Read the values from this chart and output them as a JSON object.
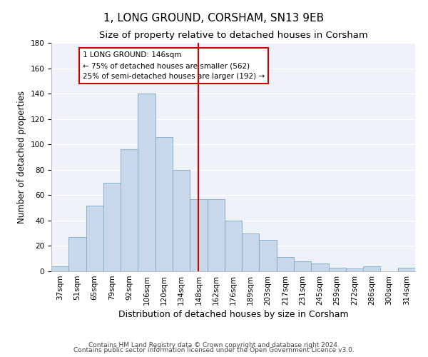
{
  "title": "1, LONG GROUND, CORSHAM, SN13 9EB",
  "subtitle": "Size of property relative to detached houses in Corsham",
  "xlabel": "Distribution of detached houses by size in Corsham",
  "ylabel": "Number of detached properties",
  "categories": [
    "37sqm",
    "51sqm",
    "65sqm",
    "79sqm",
    "92sqm",
    "106sqm",
    "120sqm",
    "134sqm",
    "148sqm",
    "162sqm",
    "176sqm",
    "189sqm",
    "203sqm",
    "217sqm",
    "231sqm",
    "245sqm",
    "259sqm",
    "272sqm",
    "286sqm",
    "300sqm",
    "314sqm"
  ],
  "values": [
    4,
    27,
    52,
    70,
    96,
    140,
    106,
    80,
    57,
    57,
    40,
    30,
    25,
    11,
    8,
    6,
    3,
    2,
    4,
    0,
    3
  ],
  "bar_color": "#c8d8ea",
  "bar_edge_color": "#7aaac8",
  "vline_x_index": 8,
  "vline_color": "#cc0000",
  "annotation_text": "1 LONG GROUND: 146sqm\n← 75% of detached houses are smaller (562)\n25% of semi-detached houses are larger (192) →",
  "annotation_box_color": "#cc0000",
  "ylim": [
    0,
    180
  ],
  "yticks": [
    0,
    20,
    40,
    60,
    80,
    100,
    120,
    140,
    160,
    180
  ],
  "footer_line1": "Contains HM Land Registry data © Crown copyright and database right 2024.",
  "footer_line2": "Contains public sector information licensed under the Open Government Licence v3.0.",
  "title_fontsize": 11,
  "subtitle_fontsize": 9.5,
  "xlabel_fontsize": 9,
  "ylabel_fontsize": 8.5,
  "tick_fontsize": 7.5,
  "annotation_fontsize": 7.5,
  "footer_fontsize": 6.5,
  "background_color": "#eef2f8"
}
